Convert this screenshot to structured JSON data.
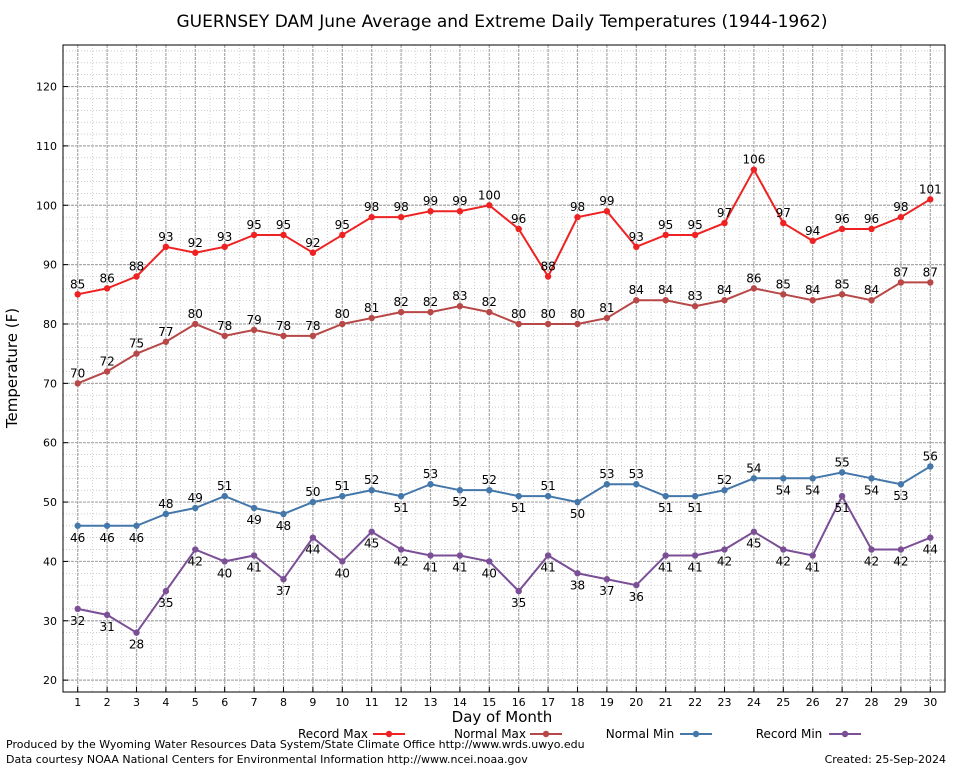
{
  "chart_data": {
    "type": "line",
    "title": "GUERNSEY DAM June Average and Extreme Daily Temperatures (1944-1962)",
    "xlabel": "Day of Month",
    "ylabel": "Temperature (F)",
    "ylim": [
      18,
      127
    ],
    "xlim": [
      0.5,
      30.5
    ],
    "x": [
      1,
      2,
      3,
      4,
      5,
      6,
      7,
      8,
      9,
      10,
      11,
      12,
      13,
      14,
      15,
      16,
      17,
      18,
      19,
      20,
      21,
      22,
      23,
      24,
      25,
      26,
      27,
      28,
      29,
      30
    ],
    "yticks": [
      20,
      30,
      40,
      50,
      60,
      70,
      80,
      90,
      100,
      110,
      120
    ],
    "grid": true,
    "legend_position": "bottom",
    "series": [
      {
        "name": "Record Max",
        "color": "#ee2222",
        "label_pos": "above",
        "values": [
          85,
          86,
          88,
          93,
          92,
          93,
          95,
          95,
          92,
          95,
          98,
          98,
          99,
          99,
          100,
          96,
          88,
          98,
          99,
          93,
          95,
          95,
          97,
          106,
          97,
          94,
          96,
          96,
          98,
          101
        ]
      },
      {
        "name": "Normal Max",
        "color": "#b84848",
        "label_pos": "above",
        "values": [
          70,
          72,
          75,
          77,
          80,
          78,
          79,
          78,
          78,
          80,
          81,
          82,
          82,
          83,
          82,
          80,
          80,
          80,
          81,
          84,
          84,
          83,
          84,
          86,
          85,
          84,
          85,
          84,
          87,
          87
        ]
      },
      {
        "name": "Normal Min",
        "color": "#4477aa",
        "label_pos": "mixed",
        "values": [
          46,
          46,
          46,
          48,
          49,
          51,
          49,
          48,
          50,
          51,
          52,
          51,
          53,
          52,
          52,
          51,
          51,
          50,
          53,
          53,
          51,
          51,
          52,
          54,
          54,
          54,
          55,
          54,
          53,
          56
        ]
      },
      {
        "name": "Record Min",
        "color": "#7a4f96",
        "label_pos": "below",
        "values": [
          32,
          31,
          28,
          35,
          42,
          40,
          41,
          37,
          44,
          40,
          45,
          42,
          41,
          41,
          40,
          35,
          41,
          38,
          37,
          36,
          41,
          41,
          42,
          45,
          42,
          41,
          51,
          42,
          42,
          44
        ]
      }
    ]
  },
  "footer": {
    "produced_by": "Produced by the Wyoming Water Resources Data System/State Climate Office http://www.wrds.uwyo.edu",
    "courtesy": "Data courtesy NOAA National Centers for Environmental Information http://www.ncei.noaa.gov",
    "created": "Created:  25-Sep-2024"
  }
}
